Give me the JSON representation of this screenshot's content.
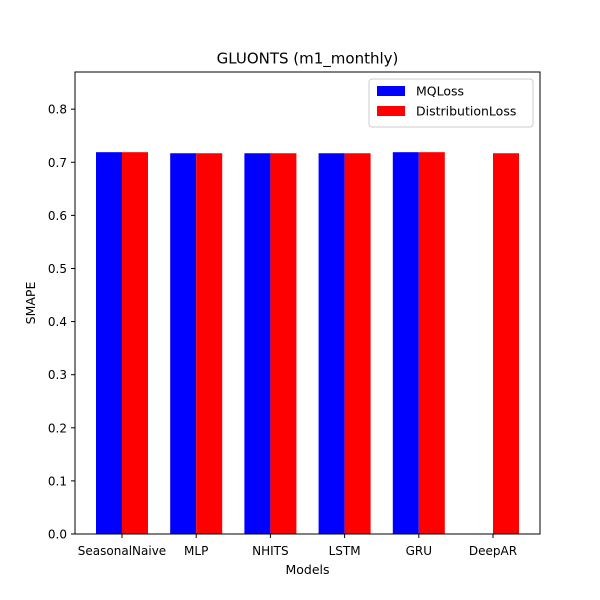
{
  "chart_data": {
    "type": "bar",
    "title": "GLUONTS (m1_monthly)",
    "xlabel": "Models",
    "ylabel": "SMAPE",
    "categories": [
      "SeasonalNaive",
      "MLP",
      "NHITS",
      "LSTM",
      "GRU",
      "DeepAR"
    ],
    "series": [
      {
        "name": "MQLoss",
        "color": "#0000ff",
        "values": [
          0.719,
          0.717,
          0.717,
          0.717,
          0.719,
          null
        ]
      },
      {
        "name": "DistributionLoss",
        "color": "#ff0000",
        "values": [
          0.719,
          0.717,
          0.717,
          0.717,
          0.719,
          0.717
        ]
      }
    ],
    "ylim": [
      0,
      0.87
    ],
    "yticks": [
      0.0,
      0.1,
      0.2,
      0.3,
      0.4,
      0.5,
      0.6,
      0.7,
      0.8
    ],
    "ytick_labels": [
      "0.0",
      "0.1",
      "0.2",
      "0.3",
      "0.4",
      "0.5",
      "0.6",
      "0.7",
      "0.8"
    ],
    "grid": false,
    "legend_position": "top-right"
  }
}
